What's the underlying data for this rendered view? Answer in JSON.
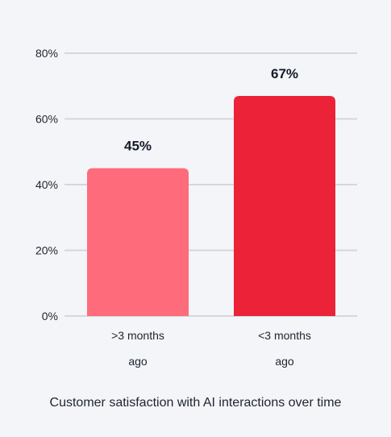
{
  "caption": "Customer satisfaction with AI interactions over time",
  "colors": {
    "background": "#f3f5f8",
    "grid": "#d4d7de",
    "series": [
      "#fe6b7b",
      "#ec2338"
    ]
  },
  "chart_data": {
    "type": "bar",
    "categories": [
      ">3 months ago",
      "<3 months ago"
    ],
    "category_lines": [
      [
        ">3 months",
        "ago"
      ],
      [
        "<3 months",
        "ago"
      ]
    ],
    "values": [
      45,
      67
    ],
    "value_labels": [
      "45%",
      "67%"
    ],
    "title": "",
    "xlabel": "",
    "ylabel": "",
    "ylim": [
      0,
      80
    ],
    "yticks": [
      0,
      20,
      40,
      60,
      80
    ],
    "ytick_labels": [
      "0%",
      "20%",
      "40%",
      "60%",
      "80%"
    ],
    "grid": true,
    "legend": "none"
  }
}
